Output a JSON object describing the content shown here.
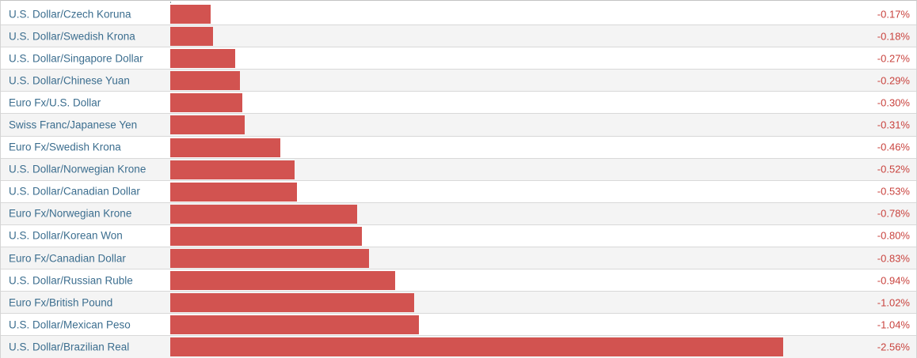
{
  "chart_data": {
    "type": "bar",
    "orientation": "horizontal",
    "title": "",
    "xlabel": "",
    "ylabel": "",
    "categories": [
      "U.S. Dollar/Czech Koruna",
      "U.S. Dollar/Swedish Krona",
      "U.S. Dollar/Singapore Dollar",
      "U.S. Dollar/Chinese Yuan",
      "Euro Fx/U.S. Dollar",
      "Swiss Franc/Japanese Yen",
      "Euro Fx/Swedish Krona",
      "U.S. Dollar/Norwegian Krone",
      "U.S. Dollar/Canadian Dollar",
      "Euro Fx/Norwegian Krone",
      "U.S. Dollar/Korean Won",
      "Euro Fx/Canadian Dollar",
      "U.S. Dollar/Russian Ruble",
      "Euro Fx/British Pound",
      "U.S. Dollar/Mexican Peso",
      "U.S. Dollar/Brazilian Real"
    ],
    "values": [
      -0.17,
      -0.18,
      -0.27,
      -0.29,
      -0.3,
      -0.31,
      -0.46,
      -0.52,
      -0.53,
      -0.78,
      -0.8,
      -0.83,
      -0.94,
      -1.02,
      -1.04,
      -2.56
    ],
    "value_labels": [
      "-0.17%",
      "-0.18%",
      "-0.27%",
      "-0.29%",
      "-0.30%",
      "-0.31%",
      "-0.46%",
      "-0.52%",
      "-0.53%",
      "-0.78%",
      "-0.80%",
      "-0.83%",
      "-0.94%",
      "-1.02%",
      "-1.04%",
      "-2.56%"
    ],
    "xlim": [
      0,
      -2.56
    ],
    "grid": false,
    "legend": false,
    "bar_color": "#d25350",
    "value_text_color": "#c9433e",
    "category_text_color": "#3c6e8f"
  },
  "rows": [
    {
      "pair": "U.S. Dollar/Czech Koruna",
      "change": -0.17,
      "change_label": "-0.17%"
    },
    {
      "pair": "U.S. Dollar/Swedish Krona",
      "change": -0.18,
      "change_label": "-0.18%"
    },
    {
      "pair": "U.S. Dollar/Singapore Dollar",
      "change": -0.27,
      "change_label": "-0.27%"
    },
    {
      "pair": "U.S. Dollar/Chinese Yuan",
      "change": -0.29,
      "change_label": "-0.29%"
    },
    {
      "pair": "Euro Fx/U.S. Dollar",
      "change": -0.3,
      "change_label": "-0.30%"
    },
    {
      "pair": "Swiss Franc/Japanese Yen",
      "change": -0.31,
      "change_label": "-0.31%"
    },
    {
      "pair": "Euro Fx/Swedish Krona",
      "change": -0.46,
      "change_label": "-0.46%"
    },
    {
      "pair": "U.S. Dollar/Norwegian Krone",
      "change": -0.52,
      "change_label": "-0.52%"
    },
    {
      "pair": "U.S. Dollar/Canadian Dollar",
      "change": -0.53,
      "change_label": "-0.53%"
    },
    {
      "pair": "Euro Fx/Norwegian Krone",
      "change": -0.78,
      "change_label": "-0.78%"
    },
    {
      "pair": "U.S. Dollar/Korean Won",
      "change": -0.8,
      "change_label": "-0.80%"
    },
    {
      "pair": "Euro Fx/Canadian Dollar",
      "change": -0.83,
      "change_label": "-0.83%"
    },
    {
      "pair": "U.S. Dollar/Russian Ruble",
      "change": -0.94,
      "change_label": "-0.94%"
    },
    {
      "pair": "Euro Fx/British Pound",
      "change": -1.02,
      "change_label": "-1.02%"
    },
    {
      "pair": "U.S. Dollar/Mexican Peso",
      "change": -1.04,
      "change_label": "-1.04%"
    },
    {
      "pair": "U.S. Dollar/Brazilian Real",
      "change": -2.56,
      "change_label": "-2.56%"
    }
  ]
}
